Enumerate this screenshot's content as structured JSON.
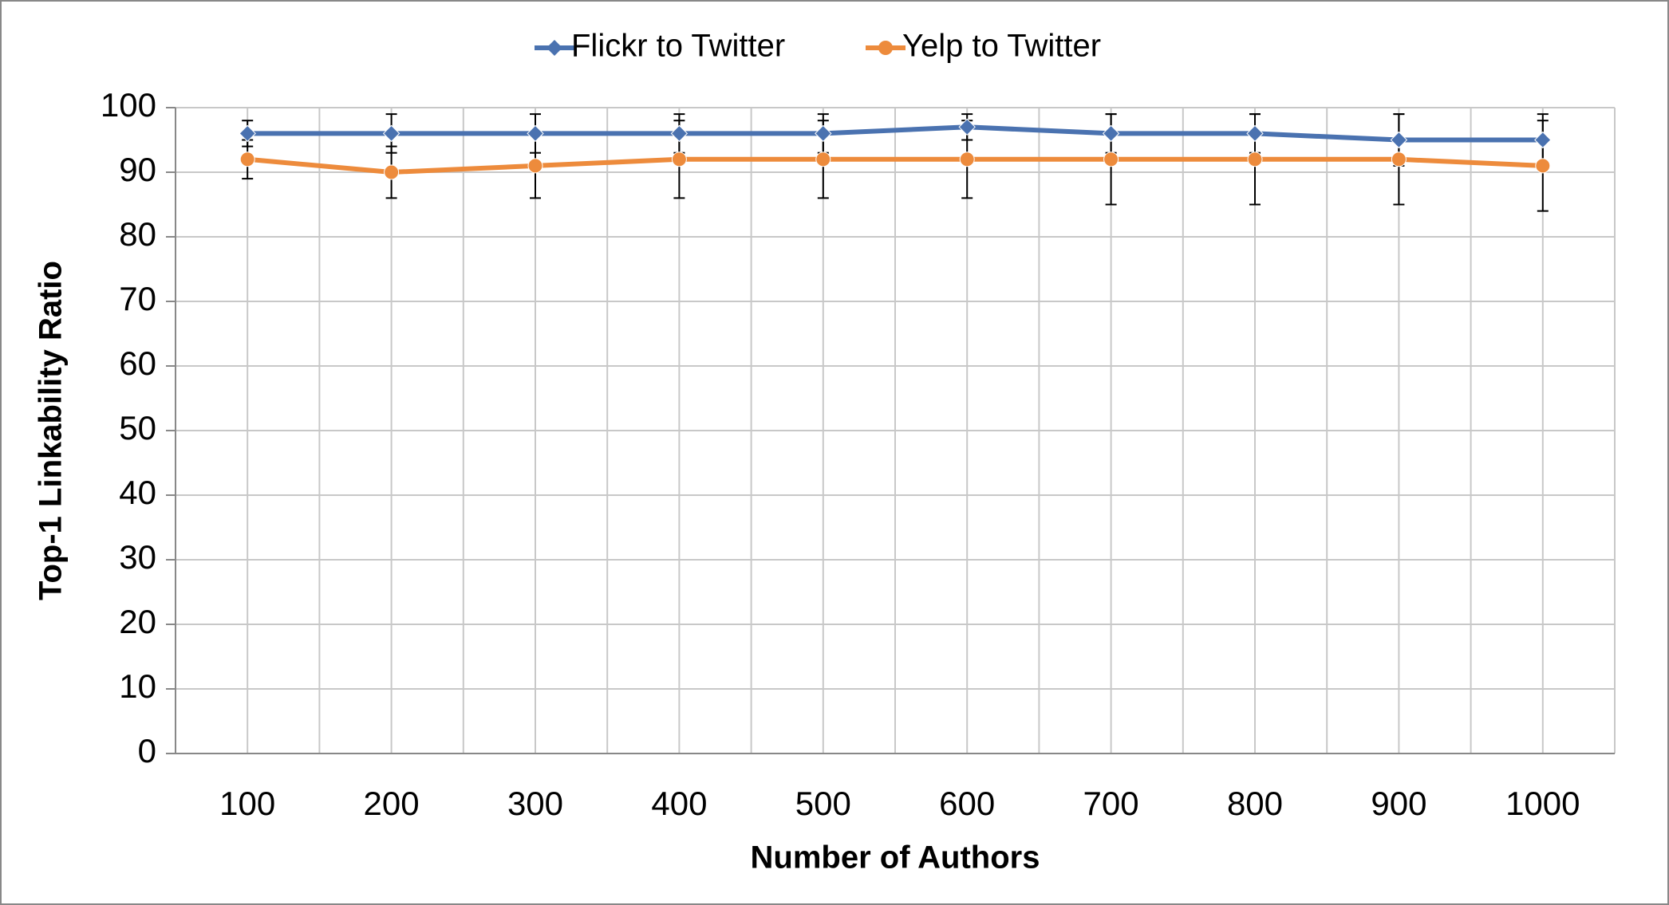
{
  "chart_data": {
    "type": "line",
    "x_label": "Number of Authors",
    "y_label": "Top-1 Linkability Ratio",
    "categories": [
      "100",
      "200",
      "300",
      "400",
      "500",
      "600",
      "700",
      "800",
      "900",
      "1000"
    ],
    "series": [
      {
        "name": "Flickr to Twitter",
        "color": "#4a72b0",
        "marker": "diamond",
        "values": [
          96,
          96,
          96,
          96,
          96,
          97,
          96,
          96,
          95,
          95
        ],
        "errors": [
          2,
          3,
          3,
          3,
          3,
          2,
          3,
          3,
          4,
          4
        ]
      },
      {
        "name": "Yelp to Twitter",
        "color": "#ed8b3c",
        "marker": "circle",
        "values": [
          92,
          90,
          91,
          92,
          92,
          92,
          92,
          92,
          92,
          91
        ],
        "errors": [
          3,
          4,
          5,
          6,
          6,
          6,
          7,
          7,
          7,
          7
        ]
      }
    ],
    "ylim": [
      0,
      100
    ],
    "yticks": [
      0,
      10,
      20,
      30,
      40,
      50,
      60,
      70,
      80,
      90,
      100
    ],
    "grid": true,
    "legend": "top"
  }
}
